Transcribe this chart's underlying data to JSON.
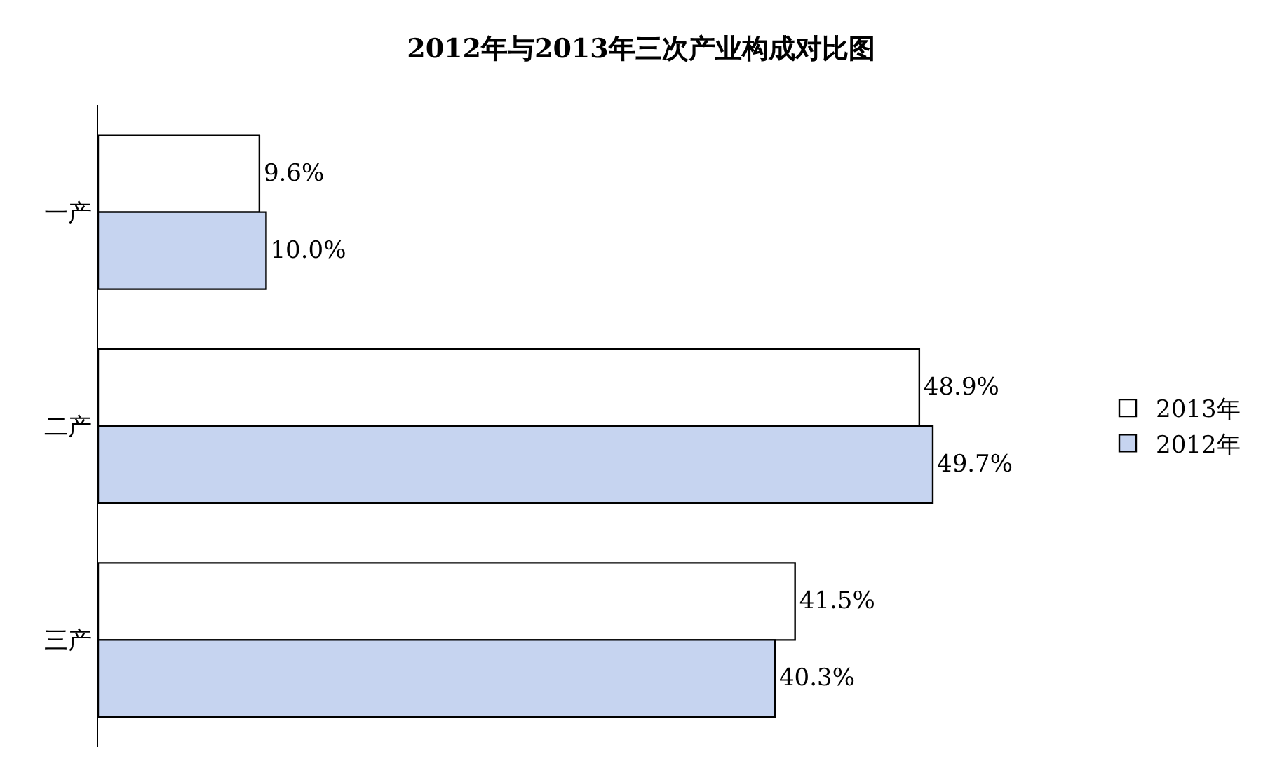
{
  "chart_data": {
    "type": "bar",
    "orientation": "horizontal",
    "title": "2012年与2013年三次产业构成对比图",
    "categories": [
      "一产",
      "二产",
      "三产"
    ],
    "series": [
      {
        "name": "2013年",
        "color": "#ffffff",
        "values": [
          9.6,
          48.9,
          41.5
        ],
        "value_labels": [
          "9.6%",
          "48.9%",
          "41.5%"
        ]
      },
      {
        "name": "2012年",
        "color": "#c6d4f0",
        "values": [
          10.0,
          49.7,
          40.3
        ],
        "value_labels": [
          "10.0%",
          "49.7%",
          "40.3%"
        ]
      }
    ],
    "legend": "right"
  }
}
